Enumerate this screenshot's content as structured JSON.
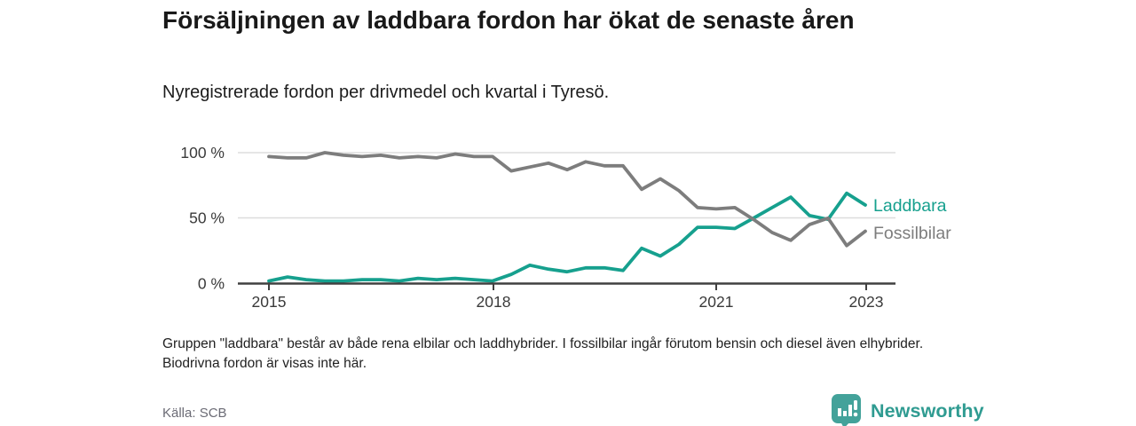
{
  "title": "Försäljningen av laddbara fordon har ökat de senaste åren",
  "subtitle": "Nyregistrerade fordon per drivmedel och kvartal i Tyresö.",
  "footnote": "Gruppen \"laddbara\" består av både rena elbilar och laddhybrider. I fossilbilar ingår förutom bensin och diesel även elhybrider. Biodrivna fordon är visas inte här.",
  "source": "Källa: SCB",
  "brand": {
    "name": "Newsworthy",
    "icon": "bar-chart-speech-bubble-icon",
    "text_color": "#2f9b91",
    "icon_bg_color": "#43a29a"
  },
  "chart_data": {
    "type": "line",
    "title": "Nyregistrerade fordon per drivmedel och kvartal i Tyresö",
    "x_unit": "quarter",
    "x_start": "2015 Q1",
    "x_end": "2023 Q1",
    "ylim": [
      0,
      100
    ],
    "y_unit": "%",
    "grid": "horizontal",
    "legend_position": "line-end-labels-right",
    "x_tick_labels": [
      "2015",
      "2018",
      "2021",
      "2023"
    ],
    "y_tick_labels": [
      "100 %",
      "50 %",
      "0 %"
    ],
    "series": [
      {
        "name": "Laddbara",
        "color": "#16a08e",
        "values": [
          2,
          5,
          3,
          2,
          2,
          3,
          3,
          2,
          4,
          3,
          4,
          3,
          2,
          7,
          14,
          11,
          9,
          12,
          12,
          10,
          27,
          21,
          30,
          43,
          43,
          42,
          50,
          58,
          66,
          52,
          49,
          69,
          60
        ]
      },
      {
        "name": "Fossilbilar",
        "color": "#7d7d7d",
        "values": [
          97,
          96,
          96,
          100,
          98,
          97,
          98,
          96,
          97,
          96,
          99,
          97,
          97,
          86,
          89,
          92,
          87,
          93,
          90,
          90,
          72,
          80,
          71,
          58,
          57,
          58,
          49,
          39,
          33,
          45,
          50,
          29,
          40
        ]
      }
    ]
  }
}
